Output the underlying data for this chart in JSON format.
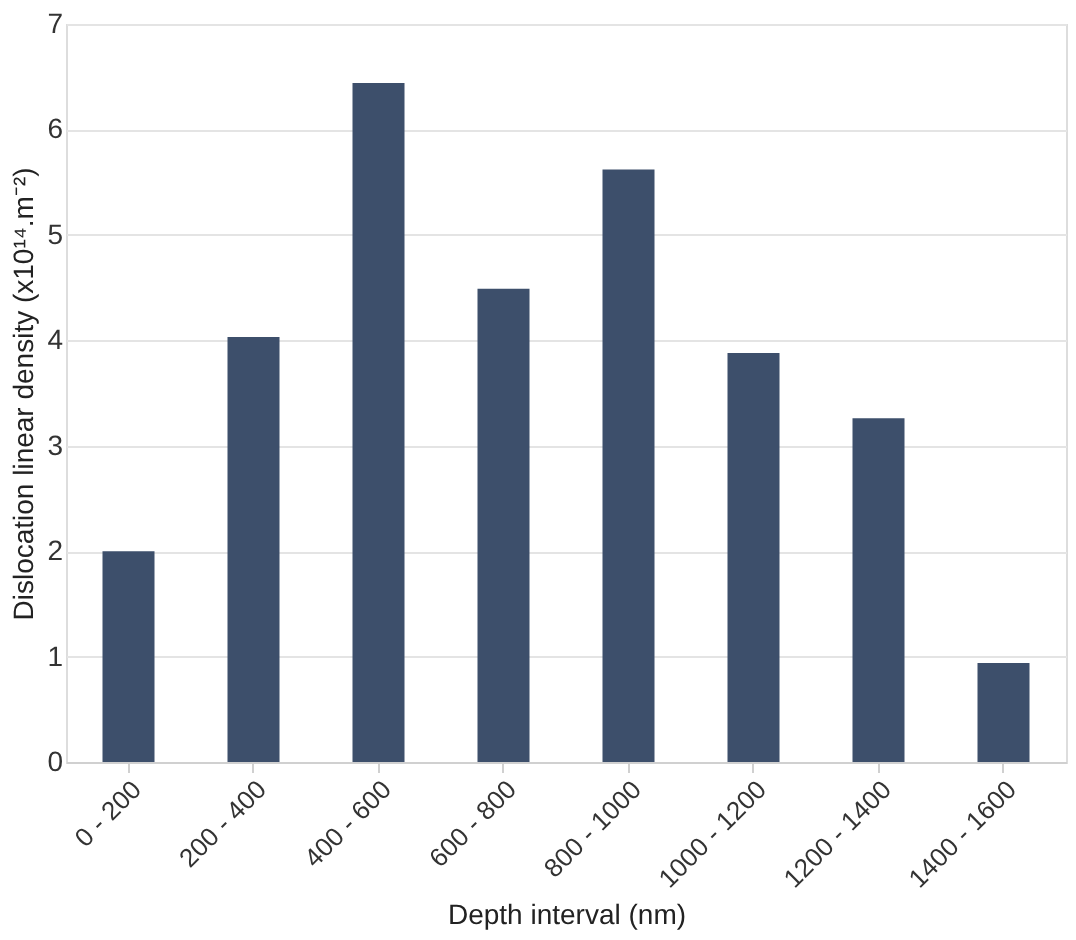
{
  "chart_data": {
    "type": "bar",
    "xlabel": "Depth interval (nm)",
    "ylabel": "Dislocation linear density (x10¹⁴.m⁻²)",
    "categories": [
      "0 - 200",
      "200 - 400",
      "400 - 600",
      "600 - 800",
      "800 - 1000",
      "1000 - 1200",
      "1200 - 1400",
      "1400 - 1600"
    ],
    "values": [
      2.0,
      4.03,
      6.44,
      4.49,
      5.62,
      3.88,
      3.26,
      0.94
    ],
    "color": "#3d4f6b",
    "ylim": [
      0,
      7
    ],
    "yticks": [
      0,
      1,
      2,
      3,
      4,
      5,
      6,
      7
    ],
    "grid": "y"
  }
}
